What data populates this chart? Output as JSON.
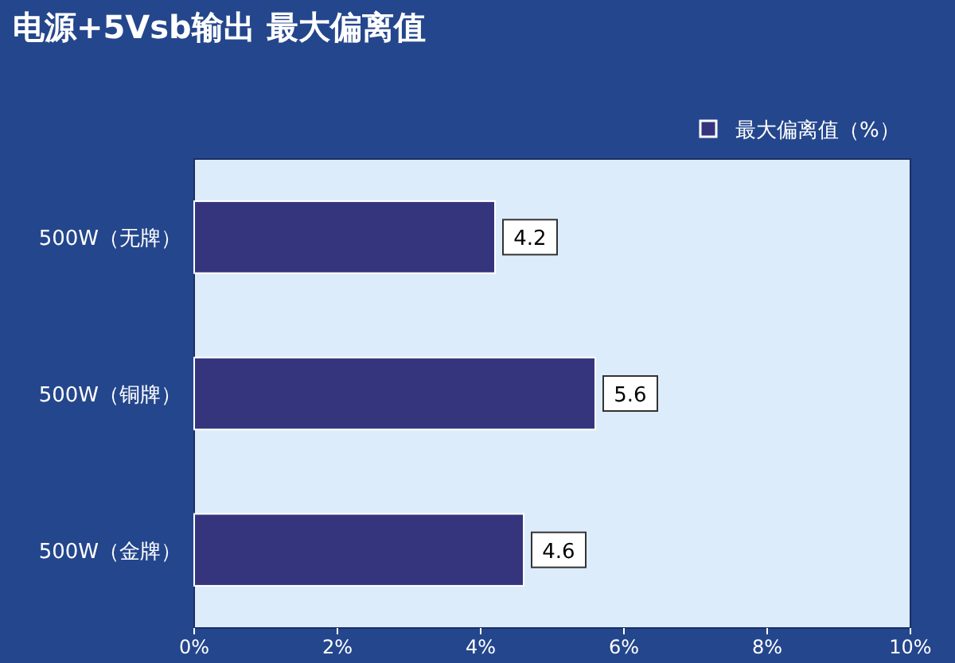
{
  "chart_data": {
    "type": "bar",
    "orientation": "horizontal",
    "title": "电源+5Vsb输出 最大偏离值",
    "categories": [
      "500W（无牌）",
      "500W（铜牌）",
      "500W（金牌）"
    ],
    "series": [
      {
        "name": "最大偏离值（%）",
        "color": "#35357d",
        "values": [
          4.2,
          5.6,
          4.6
        ]
      }
    ],
    "xlim": [
      0,
      10
    ],
    "xticks": [
      {
        "value": 0,
        "label": "0%"
      },
      {
        "value": 2,
        "label": "2%"
      },
      {
        "value": 4,
        "label": "4%"
      },
      {
        "value": 6,
        "label": "6%"
      },
      {
        "value": 8,
        "label": "8%"
      },
      {
        "value": 10,
        "label": "10%"
      }
    ],
    "data_labels": true,
    "legend": "top right",
    "grid": false
  }
}
